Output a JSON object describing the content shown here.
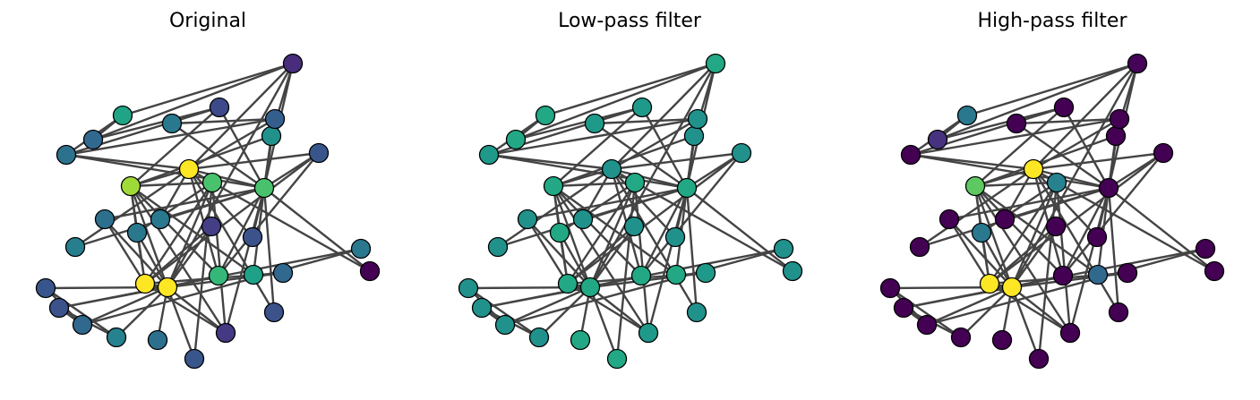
{
  "panels": [
    {
      "title": "Original",
      "node_colors": [
        "#fde725",
        "#fde725",
        "#a0da39",
        "#4ac16d",
        "#39568c",
        "#3b528b",
        "#31688e",
        "#2a788e",
        "#35b779",
        "#1fa187",
        "#26828e",
        "#2d708e",
        "#39568c",
        "#443983",
        "#3b528b",
        "#440154",
        "#2a788e",
        "#31688e",
        "#277f8e",
        "#2d708e",
        "#2a788e",
        "#433e85",
        "#3b528b",
        "#2c728e",
        "#31688e",
        "#20a486",
        "#2a788e",
        "#3e4989",
        "#21918c",
        "#345f8d",
        "#39568c",
        "#472d7b",
        "#fde725",
        "#4ac16d"
      ]
    },
    {
      "title": "Low-pass filter",
      "node_colors": [
        "#22a884",
        "#22a884",
        "#22a884",
        "#22a884",
        "#21918c",
        "#21918c",
        "#21918c",
        "#22a884",
        "#22a884",
        "#22a884",
        "#21918c",
        "#22a884",
        "#22a884",
        "#1f9a8a",
        "#21918c",
        "#21918c",
        "#21918c",
        "#1f9a8a",
        "#21918c",
        "#21918c",
        "#21918c",
        "#21918c",
        "#21918c",
        "#1f9a8a",
        "#22a884",
        "#22a884",
        "#1f9a8a",
        "#1f9a8a",
        "#21918c",
        "#21918c",
        "#21918c",
        "#22a884",
        "#21918c",
        "#22a884"
      ]
    },
    {
      "title": "High-pass filter",
      "node_colors": [
        "#fde725",
        "#fde725",
        "#5ec962",
        "#26828e",
        "#440154",
        "#440154",
        "#440154",
        "#2a788e",
        "#440154",
        "#31688e",
        "#440154",
        "#440154",
        "#440154",
        "#440154",
        "#440154",
        "#440154",
        "#440154",
        "#440154",
        "#440154",
        "#440154",
        "#440154",
        "#440154",
        "#440154",
        "#440154",
        "#46327e",
        "#2a788e",
        "#440154",
        "#440154",
        "#440154",
        "#440154",
        "#440154",
        "#450457",
        "#fde725",
        "#440154"
      ]
    }
  ]
}
